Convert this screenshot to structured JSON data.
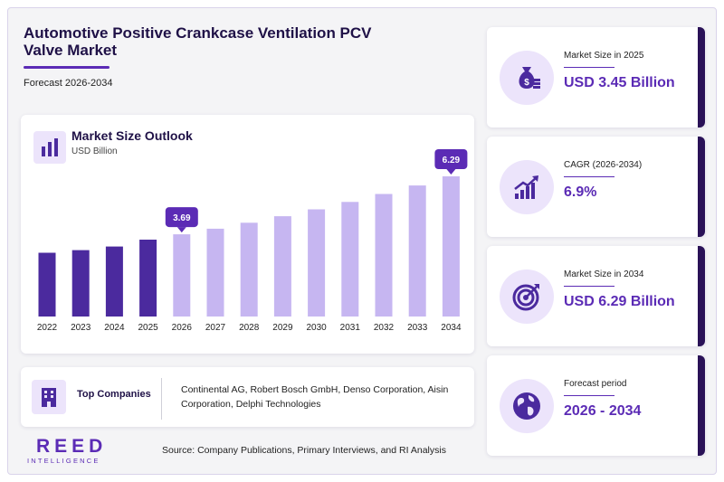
{
  "header": {
    "title": "Automotive Positive Crankcase Ventilation PCV Valve Market",
    "subtitle": "Forecast 2026-2034"
  },
  "chart_panel": {
    "title": "Market Size Outlook",
    "unit": "USD Billion"
  },
  "chart_data": {
    "type": "bar",
    "categories": [
      "2022",
      "2023",
      "2024",
      "2025",
      "2026",
      "2027",
      "2028",
      "2029",
      "2030",
      "2031",
      "2032",
      "2033",
      "2034"
    ],
    "values": [
      2.86,
      2.98,
      3.14,
      3.45,
      3.69,
      3.94,
      4.21,
      4.5,
      4.81,
      5.14,
      5.5,
      5.88,
      6.29
    ],
    "historical_color": "#4b2a9e",
    "forecast_color": "#c6b6f1",
    "callouts": [
      {
        "category": "2026",
        "label": "3.69"
      },
      {
        "category": "2034",
        "label": "6.29"
      }
    ],
    "ylim": [
      0,
      6.29
    ],
    "grid": false,
    "title": "Market Size Outlook",
    "ylabel": "USD Billion"
  },
  "companies": {
    "label": "Top Companies",
    "text": "Continental AG, Robert Bosch GmbH, Denso Corporation, Aisin Corporation, Delphi Technologies"
  },
  "logo": {
    "main": "REED",
    "sub": "INTELLIGENCE"
  },
  "source": "Source: Company Publications, Primary Interviews, and RI Analysis",
  "kpis": [
    {
      "label": "Market Size in 2025",
      "value": "USD 3.45 Billion",
      "icon": "money-bag-icon"
    },
    {
      "label": "CAGR (2026-2034)",
      "value": "6.9%",
      "icon": "growth-chart-icon"
    },
    {
      "label": "Market Size in 2034",
      "value": "USD 6.29 Billion",
      "icon": "target-icon"
    },
    {
      "label": "Forecast period",
      "value": "2026 - 2034",
      "icon": "globe-icon"
    }
  ],
  "colors": {
    "accent": "#5b2bb5",
    "dark": "#2a1257",
    "icon_bg": "#ece4fb"
  }
}
